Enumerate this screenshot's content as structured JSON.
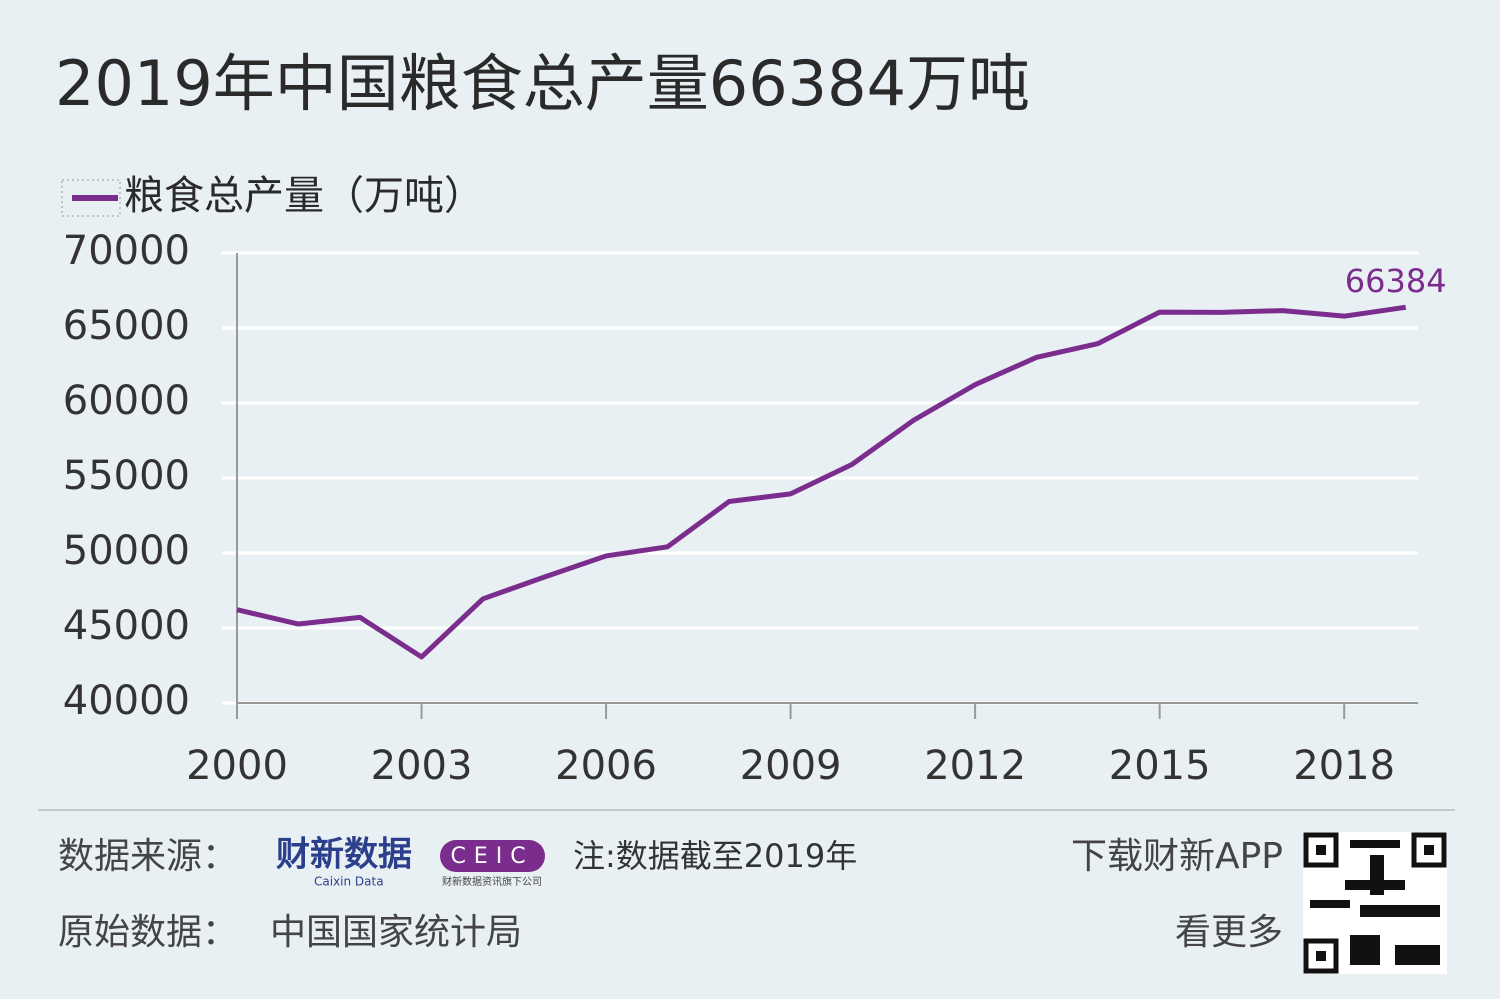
{
  "chart_data": {
    "type": "line",
    "title": "2019年中国粮食总产量66384万吨",
    "x": [
      2000,
      2001,
      2002,
      2003,
      2004,
      2005,
      2006,
      2007,
      2008,
      2009,
      2010,
      2011,
      2012,
      2013,
      2014,
      2015,
      2016,
      2017,
      2018,
      2019
    ],
    "series": [
      {
        "name": "粮食总产量（万吨）",
        "color": "#7b2d8e",
        "values": [
          46218,
          45264,
          45706,
          43070,
          46947,
          48402,
          49804,
          50414,
          53434,
          53941,
          55911,
          58849,
          61223,
          63048,
          63965,
          66060,
          66044,
          66161,
          65789,
          66384
        ]
      }
    ],
    "xlim": [
      2000,
      2019.2
    ],
    "xticks": [
      2000,
      2003,
      2006,
      2009,
      2012,
      2015,
      2018
    ],
    "ylim": [
      40000,
      70000
    ],
    "yticks": [
      40000,
      45000,
      50000,
      55000,
      60000,
      65000,
      70000
    ],
    "grid": true
  },
  "footer": {
    "source_label": "数据来源：",
    "logo_cn": "财新数据",
    "logo_en": "Caixin Data",
    "ceic": "CEIC",
    "ceic_note": "财新数据资讯旗下公司",
    "note": "注:数据截至2019年",
    "app": "下载财新APP",
    "more": "看更多",
    "origin_label": "原始数据：",
    "origin": "中国国家统计局"
  }
}
